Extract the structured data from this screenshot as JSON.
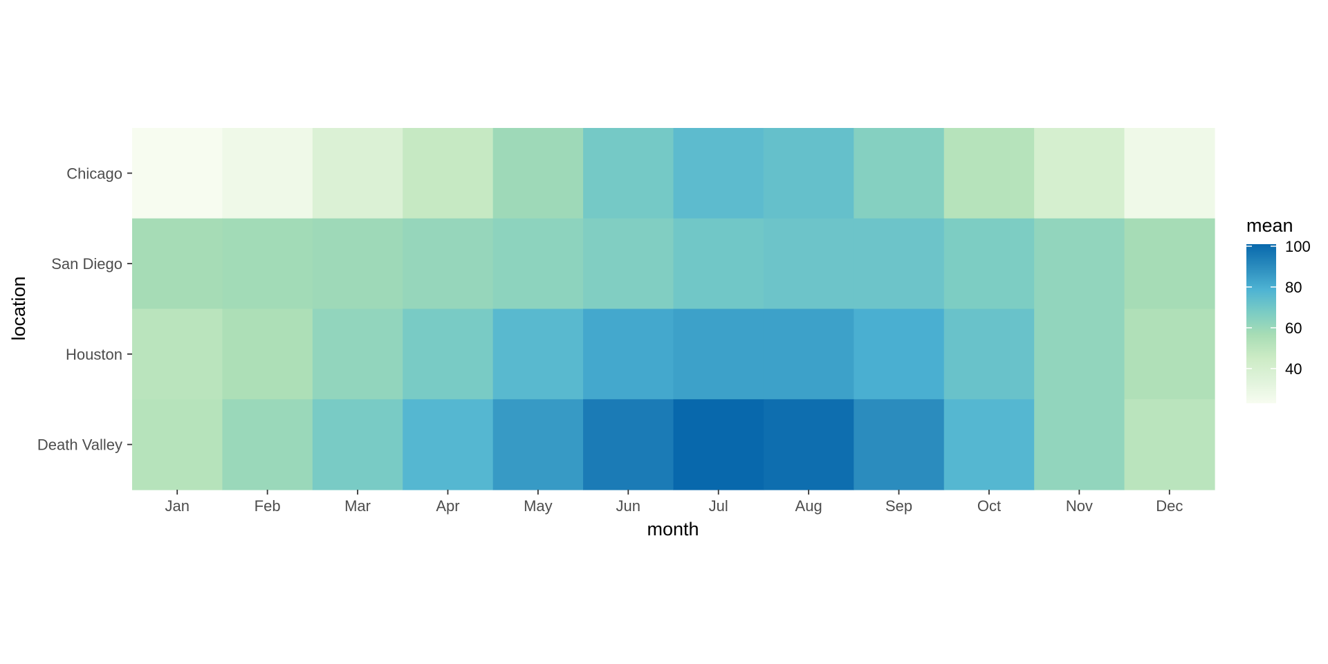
{
  "chart_data": {
    "type": "heatmap",
    "title": "",
    "xlabel": "month",
    "ylabel": "location",
    "x_categories": [
      "Jan",
      "Feb",
      "Mar",
      "Apr",
      "May",
      "Jun",
      "Jul",
      "Aug",
      "Sep",
      "Oct",
      "Nov",
      "Dec"
    ],
    "y_categories": [
      "Chicago",
      "San Diego",
      "Houston",
      "Death Valley"
    ],
    "values": [
      [
        23,
        27,
        37,
        47,
        59,
        69,
        75,
        73,
        65,
        52,
        40,
        27
      ],
      [
        57,
        58,
        59,
        61,
        63,
        66,
        70,
        71,
        71,
        67,
        62,
        57
      ],
      [
        51,
        55,
        62,
        68,
        76,
        82,
        84,
        84,
        80,
        72,
        62,
        54
      ],
      [
        52,
        60,
        68,
        77,
        86,
        95,
        101,
        99,
        90,
        77,
        62,
        51
      ]
    ],
    "legend": {
      "title": "mean",
      "ticks": [
        40,
        60,
        80,
        100
      ],
      "range": [
        23,
        101
      ],
      "position": "right"
    },
    "colors": {
      "scale": [
        "#f7fcf0",
        "#e0f3db",
        "#ccebc5",
        "#a8ddb5",
        "#7bccc4",
        "#4eb3d3",
        "#2b8cbe",
        "#0868ac"
      ]
    },
    "grid": false
  }
}
